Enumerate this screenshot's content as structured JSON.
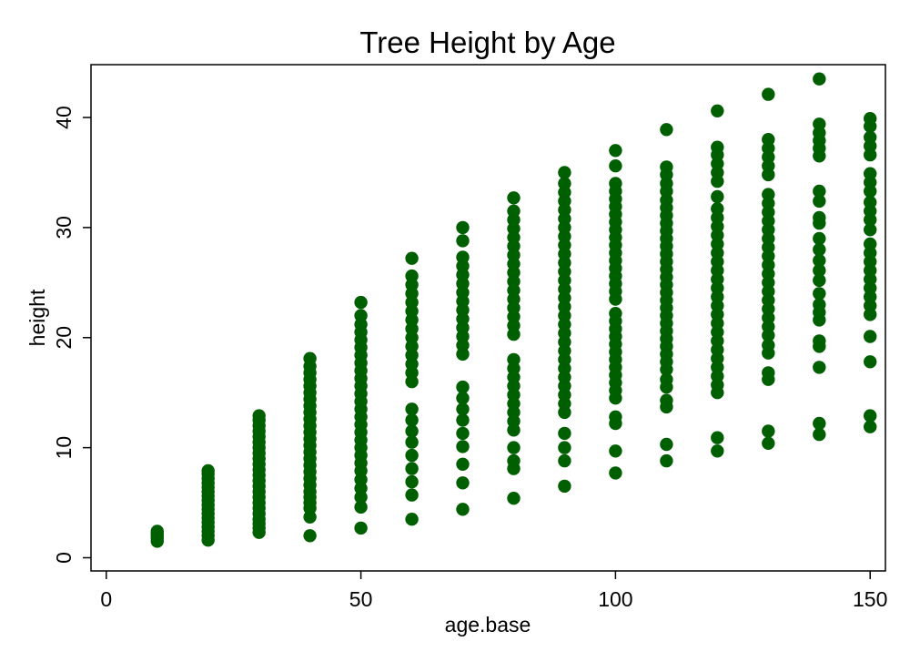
{
  "chart_data": {
    "type": "scatter",
    "title": "Tree Height by Age",
    "xlabel": "age.base",
    "ylabel": "height",
    "xlim": [
      -3,
      153
    ],
    "ylim": [
      -1.2,
      44.8
    ],
    "xticks": [
      0,
      50,
      100,
      150
    ],
    "yticks": [
      0,
      10,
      20,
      30,
      40
    ],
    "grid": false,
    "legend": "none",
    "marker_color": "#005f00",
    "points": [
      [
        10,
        1.5
      ],
      [
        10,
        1.8
      ],
      [
        10,
        2.0
      ],
      [
        10,
        2.2
      ],
      [
        10,
        2.4
      ],
      [
        20,
        1.6
      ],
      [
        20,
        2.0
      ],
      [
        20,
        2.4
      ],
      [
        20,
        2.8
      ],
      [
        20,
        3.2
      ],
      [
        20,
        3.6
      ],
      [
        20,
        4.0
      ],
      [
        20,
        4.4
      ],
      [
        20,
        4.8
      ],
      [
        20,
        5.2
      ],
      [
        20,
        5.6
      ],
      [
        20,
        6.0
      ],
      [
        20,
        6.4
      ],
      [
        20,
        6.8
      ],
      [
        20,
        7.2
      ],
      [
        20,
        7.6
      ],
      [
        20,
        7.9
      ],
      [
        30,
        2.3
      ],
      [
        30,
        2.7
      ],
      [
        30,
        3.1
      ],
      [
        30,
        3.5
      ],
      [
        30,
        4.0
      ],
      [
        30,
        4.5
      ],
      [
        30,
        5.0
      ],
      [
        30,
        5.5
      ],
      [
        30,
        6.0
      ],
      [
        30,
        6.5
      ],
      [
        30,
        7.0
      ],
      [
        30,
        7.5
      ],
      [
        30,
        8.0
      ],
      [
        30,
        8.5
      ],
      [
        30,
        9.0
      ],
      [
        30,
        9.5
      ],
      [
        30,
        10.0
      ],
      [
        30,
        10.5
      ],
      [
        30,
        11.0
      ],
      [
        30,
        11.5
      ],
      [
        30,
        12.0
      ],
      [
        30,
        12.5
      ],
      [
        30,
        12.9
      ],
      [
        40,
        2.0
      ],
      [
        40,
        3.7
      ],
      [
        40,
        4.5
      ],
      [
        40,
        5.0
      ],
      [
        40,
        5.5
      ],
      [
        40,
        6.0
      ],
      [
        40,
        6.6
      ],
      [
        40,
        7.2
      ],
      [
        40,
        7.8
      ],
      [
        40,
        8.4
      ],
      [
        40,
        9.0
      ],
      [
        40,
        9.6
      ],
      [
        40,
        10.2
      ],
      [
        40,
        10.8
      ],
      [
        40,
        11.4
      ],
      [
        40,
        12.0
      ],
      [
        40,
        12.6
      ],
      [
        40,
        13.2
      ],
      [
        40,
        13.8
      ],
      [
        40,
        14.4
      ],
      [
        40,
        15.0
      ],
      [
        40,
        15.6
      ],
      [
        40,
        16.2
      ],
      [
        40,
        16.8
      ],
      [
        40,
        17.4
      ],
      [
        40,
        18.1
      ],
      [
        50,
        2.7
      ],
      [
        50,
        4.6
      ],
      [
        50,
        5.5
      ],
      [
        50,
        6.3
      ],
      [
        50,
        7.1
      ],
      [
        50,
        7.9
      ],
      [
        50,
        8.6
      ],
      [
        50,
        9.3
      ],
      [
        50,
        10.0
      ],
      [
        50,
        10.7
      ],
      [
        50,
        11.4
      ],
      [
        50,
        12.1
      ],
      [
        50,
        12.8
      ],
      [
        50,
        13.5
      ],
      [
        50,
        14.2
      ],
      [
        50,
        14.9
      ],
      [
        50,
        15.6
      ],
      [
        50,
        16.3
      ],
      [
        50,
        17.0
      ],
      [
        50,
        17.7
      ],
      [
        50,
        18.4
      ],
      [
        50,
        19.1
      ],
      [
        50,
        19.8
      ],
      [
        50,
        20.5
      ],
      [
        50,
        21.2
      ],
      [
        50,
        22.0
      ],
      [
        50,
        23.2
      ],
      [
        60,
        3.5
      ],
      [
        60,
        5.7
      ],
      [
        60,
        6.9
      ],
      [
        60,
        8.1
      ],
      [
        60,
        9.3
      ],
      [
        60,
        10.5
      ],
      [
        60,
        11.5
      ],
      [
        60,
        12.5
      ],
      [
        60,
        13.5
      ],
      [
        60,
        16.0
      ],
      [
        60,
        16.8
      ],
      [
        60,
        17.6
      ],
      [
        60,
        18.4
      ],
      [
        60,
        19.2
      ],
      [
        60,
        20.0
      ],
      [
        60,
        20.8
      ],
      [
        60,
        21.6
      ],
      [
        60,
        22.4
      ],
      [
        60,
        23.2
      ],
      [
        60,
        24.0
      ],
      [
        60,
        24.8
      ],
      [
        60,
        25.6
      ],
      [
        60,
        27.2
      ],
      [
        70,
        4.4
      ],
      [
        70,
        6.8
      ],
      [
        70,
        8.5
      ],
      [
        70,
        10.1
      ],
      [
        70,
        11.3
      ],
      [
        70,
        12.5
      ],
      [
        70,
        13.5
      ],
      [
        70,
        14.5
      ],
      [
        70,
        15.5
      ],
      [
        70,
        18.5
      ],
      [
        70,
        19.3
      ],
      [
        70,
        20.1
      ],
      [
        70,
        20.9
      ],
      [
        70,
        21.7
      ],
      [
        70,
        22.5
      ],
      [
        70,
        23.3
      ],
      [
        70,
        24.1
      ],
      [
        70,
        24.9
      ],
      [
        70,
        25.7
      ],
      [
        70,
        26.5
      ],
      [
        70,
        27.3
      ],
      [
        70,
        28.8
      ],
      [
        70,
        30.0
      ],
      [
        80,
        5.4
      ],
      [
        80,
        8.1
      ],
      [
        80,
        8.8
      ],
      [
        80,
        10.0
      ],
      [
        80,
        11.6
      ],
      [
        80,
        12.4
      ],
      [
        80,
        13.2
      ],
      [
        80,
        14.0
      ],
      [
        80,
        14.8
      ],
      [
        80,
        15.6
      ],
      [
        80,
        16.4
      ],
      [
        80,
        17.2
      ],
      [
        80,
        18.0
      ],
      [
        80,
        20.3
      ],
      [
        80,
        21.1
      ],
      [
        80,
        21.9
      ],
      [
        80,
        22.7
      ],
      [
        80,
        23.5
      ],
      [
        80,
        24.3
      ],
      [
        80,
        25.1
      ],
      [
        80,
        25.9
      ],
      [
        80,
        26.7
      ],
      [
        80,
        27.5
      ],
      [
        80,
        28.3
      ],
      [
        80,
        29.1
      ],
      [
        80,
        29.9
      ],
      [
        80,
        30.7
      ],
      [
        80,
        31.5
      ],
      [
        80,
        32.7
      ],
      [
        90,
        6.5
      ],
      [
        90,
        8.8
      ],
      [
        90,
        10.0
      ],
      [
        90,
        11.3
      ],
      [
        90,
        13.2
      ],
      [
        90,
        14.0
      ],
      [
        90,
        14.8
      ],
      [
        90,
        15.6
      ],
      [
        90,
        16.4
      ],
      [
        90,
        17.2
      ],
      [
        90,
        18.0
      ],
      [
        90,
        18.8
      ],
      [
        90,
        19.6
      ],
      [
        90,
        20.4
      ],
      [
        90,
        21.2
      ],
      [
        90,
        22.0
      ],
      [
        90,
        22.8
      ],
      [
        90,
        23.6
      ],
      [
        90,
        24.4
      ],
      [
        90,
        25.2
      ],
      [
        90,
        26.0
      ],
      [
        90,
        26.8
      ],
      [
        90,
        27.6
      ],
      [
        90,
        28.4
      ],
      [
        90,
        29.2
      ],
      [
        90,
        30.0
      ],
      [
        90,
        30.8
      ],
      [
        90,
        31.6
      ],
      [
        90,
        32.4
      ],
      [
        90,
        33.2
      ],
      [
        90,
        34.0
      ],
      [
        90,
        35.0
      ],
      [
        100,
        7.7
      ],
      [
        100,
        9.7
      ],
      [
        100,
        12.2
      ],
      [
        100,
        12.8
      ],
      [
        100,
        14.5
      ],
      [
        100,
        15.2
      ],
      [
        100,
        15.9
      ],
      [
        100,
        16.6
      ],
      [
        100,
        17.3
      ],
      [
        100,
        18.0
      ],
      [
        100,
        18.7
      ],
      [
        100,
        19.4
      ],
      [
        100,
        20.1
      ],
      [
        100,
        20.8
      ],
      [
        100,
        21.5
      ],
      [
        100,
        22.2
      ],
      [
        100,
        23.5
      ],
      [
        100,
        24.2
      ],
      [
        100,
        24.9
      ],
      [
        100,
        25.6
      ],
      [
        100,
        26.3
      ],
      [
        100,
        27.0
      ],
      [
        100,
        27.7
      ],
      [
        100,
        28.4
      ],
      [
        100,
        29.1
      ],
      [
        100,
        29.8
      ],
      [
        100,
        30.5
      ],
      [
        100,
        31.2
      ],
      [
        100,
        31.9
      ],
      [
        100,
        32.6
      ],
      [
        100,
        33.3
      ],
      [
        100,
        34.0
      ],
      [
        100,
        35.6
      ],
      [
        100,
        37.0
      ],
      [
        110,
        8.8
      ],
      [
        110,
        10.3
      ],
      [
        110,
        13.7
      ],
      [
        110,
        14.3
      ],
      [
        110,
        15.5
      ],
      [
        110,
        16.2
      ],
      [
        110,
        17.1
      ],
      [
        110,
        17.8
      ],
      [
        110,
        18.5
      ],
      [
        110,
        19.2
      ],
      [
        110,
        19.9
      ],
      [
        110,
        20.6
      ],
      [
        110,
        21.3
      ],
      [
        110,
        22.0
      ],
      [
        110,
        22.7
      ],
      [
        110,
        23.4
      ],
      [
        110,
        24.1
      ],
      [
        110,
        24.8
      ],
      [
        110,
        25.5
      ],
      [
        110,
        26.2
      ],
      [
        110,
        26.9
      ],
      [
        110,
        27.6
      ],
      [
        110,
        28.3
      ],
      [
        110,
        29.0
      ],
      [
        110,
        29.7
      ],
      [
        110,
        30.4
      ],
      [
        110,
        31.1
      ],
      [
        110,
        31.8
      ],
      [
        110,
        32.5
      ],
      [
        110,
        33.3
      ],
      [
        110,
        34.0
      ],
      [
        110,
        34.8
      ],
      [
        110,
        35.5
      ],
      [
        110,
        38.9
      ],
      [
        120,
        9.7
      ],
      [
        120,
        10.9
      ],
      [
        120,
        15.0
      ],
      [
        120,
        15.7
      ],
      [
        120,
        16.5
      ],
      [
        120,
        17.3
      ],
      [
        120,
        18.1
      ],
      [
        120,
        18.9
      ],
      [
        120,
        19.7
      ],
      [
        120,
        20.5
      ],
      [
        120,
        21.3
      ],
      [
        120,
        22.1
      ],
      [
        120,
        22.9
      ],
      [
        120,
        23.7
      ],
      [
        120,
        24.5
      ],
      [
        120,
        25.3
      ],
      [
        120,
        26.1
      ],
      [
        120,
        26.9
      ],
      [
        120,
        27.7
      ],
      [
        120,
        28.5
      ],
      [
        120,
        29.3
      ],
      [
        120,
        30.1
      ],
      [
        120,
        30.9
      ],
      [
        120,
        31.7
      ],
      [
        120,
        32.8
      ],
      [
        120,
        34.2
      ],
      [
        120,
        35.0
      ],
      [
        120,
        35.8
      ],
      [
        120,
        36.6
      ],
      [
        120,
        37.3
      ],
      [
        120,
        40.6
      ],
      [
        130,
        10.4
      ],
      [
        130,
        11.5
      ],
      [
        130,
        16.2
      ],
      [
        130,
        16.8
      ],
      [
        130,
        18.6
      ],
      [
        130,
        19.3
      ],
      [
        130,
        20.2
      ],
      [
        130,
        21.0
      ],
      [
        130,
        21.8
      ],
      [
        130,
        22.6
      ],
      [
        130,
        23.4
      ],
      [
        130,
        24.2
      ],
      [
        130,
        25.0
      ],
      [
        130,
        25.8
      ],
      [
        130,
        26.6
      ],
      [
        130,
        27.4
      ],
      [
        130,
        28.2
      ],
      [
        130,
        29.0
      ],
      [
        130,
        29.8
      ],
      [
        130,
        30.6
      ],
      [
        130,
        31.4
      ],
      [
        130,
        32.2
      ],
      [
        130,
        33.0
      ],
      [
        130,
        34.8
      ],
      [
        130,
        35.6
      ],
      [
        130,
        36.4
      ],
      [
        130,
        37.2
      ],
      [
        130,
        38.0
      ],
      [
        130,
        42.1
      ],
      [
        140,
        11.2
      ],
      [
        140,
        12.2
      ],
      [
        140,
        17.3
      ],
      [
        140,
        19.2
      ],
      [
        140,
        19.7
      ],
      [
        140,
        21.6
      ],
      [
        140,
        22.3
      ],
      [
        140,
        23.0
      ],
      [
        140,
        24.0
      ],
      [
        140,
        25.2
      ],
      [
        140,
        26.1
      ],
      [
        140,
        27.0
      ],
      [
        140,
        28.0
      ],
      [
        140,
        29.0
      ],
      [
        140,
        30.4
      ],
      [
        140,
        30.9
      ],
      [
        140,
        32.4
      ],
      [
        140,
        33.3
      ],
      [
        140,
        36.5
      ],
      [
        140,
        37.2
      ],
      [
        140,
        37.9
      ],
      [
        140,
        38.6
      ],
      [
        140,
        39.4
      ],
      [
        140,
        43.5
      ],
      [
        150,
        11.9
      ],
      [
        150,
        12.9
      ],
      [
        150,
        17.8
      ],
      [
        150,
        20.1
      ],
      [
        150,
        22.1
      ],
      [
        150,
        22.9
      ],
      [
        150,
        23.7
      ],
      [
        150,
        24.5
      ],
      [
        150,
        25.3
      ],
      [
        150,
        26.1
      ],
      [
        150,
        26.9
      ],
      [
        150,
        27.7
      ],
      [
        150,
        28.5
      ],
      [
        150,
        29.8
      ],
      [
        150,
        30.7
      ],
      [
        150,
        31.5
      ],
      [
        150,
        32.3
      ],
      [
        150,
        33.3
      ],
      [
        150,
        34.1
      ],
      [
        150,
        34.9
      ],
      [
        150,
        36.6
      ],
      [
        150,
        37.4
      ],
      [
        150,
        38.2
      ],
      [
        150,
        39.2
      ],
      [
        150,
        39.9
      ]
    ]
  }
}
